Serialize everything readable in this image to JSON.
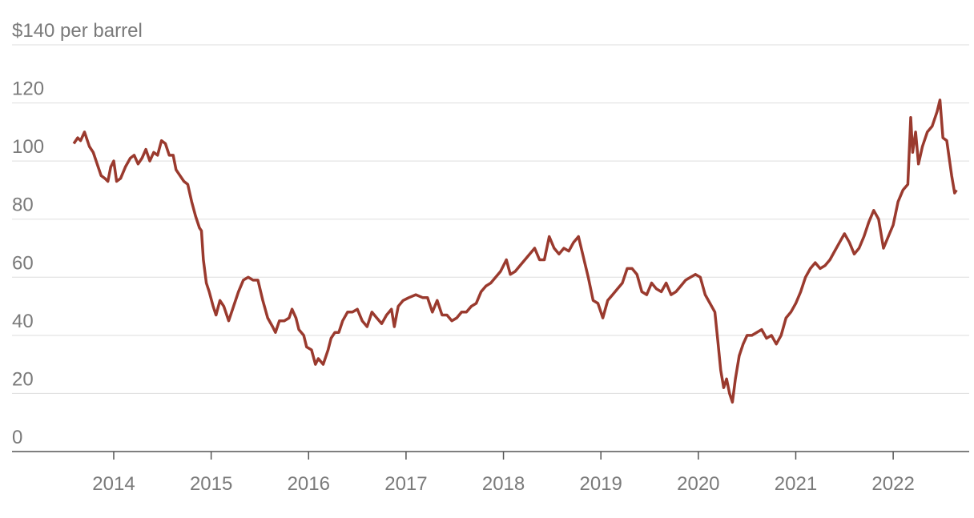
{
  "chart_data": {
    "type": "line",
    "x": [
      2013.59,
      2013.63,
      2013.66,
      2013.7,
      2013.75,
      2013.79,
      2013.83,
      2013.87,
      2013.91,
      2013.94,
      2013.97,
      2014.0,
      2014.03,
      2014.07,
      2014.12,
      2014.17,
      2014.21,
      2014.25,
      2014.29,
      2014.33,
      2014.37,
      2014.41,
      2014.45,
      2014.49,
      2014.53,
      2014.57,
      2014.61,
      2014.64,
      2014.68,
      2014.72,
      2014.76,
      2014.8,
      2014.84,
      2014.88,
      2014.9,
      2014.92,
      2014.95,
      2014.98,
      2015.02,
      2015.05,
      2015.09,
      2015.13,
      2015.18,
      2015.22,
      2015.28,
      2015.33,
      2015.38,
      2015.43,
      2015.48,
      2015.53,
      2015.58,
      2015.63,
      2015.66,
      2015.7,
      2015.75,
      2015.8,
      2015.83,
      2015.87,
      2015.9,
      2015.95,
      2015.98,
      2016.03,
      2016.07,
      2016.1,
      2016.15,
      2016.2,
      2016.23,
      2016.27,
      2016.31,
      2016.35,
      2016.4,
      2016.45,
      2016.5,
      2016.55,
      2016.6,
      2016.65,
      2016.7,
      2016.75,
      2016.8,
      2016.85,
      2016.88,
      2016.92,
      2016.97,
      2017.03,
      2017.1,
      2017.17,
      2017.22,
      2017.27,
      2017.32,
      2017.37,
      2017.42,
      2017.47,
      2017.52,
      2017.57,
      2017.62,
      2017.67,
      2017.72,
      2017.77,
      2017.82,
      2017.87,
      2017.92,
      2017.97,
      2018.03,
      2018.07,
      2018.12,
      2018.17,
      2018.22,
      2018.27,
      2018.32,
      2018.37,
      2018.42,
      2018.47,
      2018.52,
      2018.57,
      2018.62,
      2018.67,
      2018.72,
      2018.77,
      2018.82,
      2018.87,
      2018.92,
      2018.97,
      2019.02,
      2019.07,
      2019.12,
      2019.17,
      2019.22,
      2019.27,
      2019.32,
      2019.37,
      2019.42,
      2019.47,
      2019.52,
      2019.57,
      2019.62,
      2019.67,
      2019.72,
      2019.77,
      2019.82,
      2019.87,
      2019.92,
      2019.97,
      2020.02,
      2020.07,
      2020.12,
      2020.17,
      2020.2,
      2020.23,
      2020.26,
      2020.29,
      2020.32,
      2020.35,
      2020.38,
      2020.42,
      2020.46,
      2020.5,
      2020.55,
      2020.6,
      2020.65,
      2020.7,
      2020.75,
      2020.8,
      2020.85,
      2020.9,
      2020.95,
      2021.0,
      2021.05,
      2021.1,
      2021.15,
      2021.2,
      2021.25,
      2021.3,
      2021.35,
      2021.4,
      2021.45,
      2021.5,
      2021.55,
      2021.6,
      2021.65,
      2021.7,
      2021.75,
      2021.8,
      2021.85,
      2021.9,
      2021.95,
      2022.0,
      2022.05,
      2022.1,
      2022.15,
      2022.18,
      2022.2,
      2022.23,
      2022.26,
      2022.3,
      2022.35,
      2022.4,
      2022.45,
      2022.48,
      2022.51,
      2022.55,
      2022.6,
      2022.63,
      2022.65
    ],
    "series": [
      {
        "color": "#9a3a2e",
        "values": [
          106,
          108,
          107,
          110,
          105,
          103,
          99,
          95,
          94,
          93,
          98,
          100,
          93,
          94,
          98,
          101,
          102,
          99,
          101,
          104,
          100,
          103,
          102,
          107,
          106,
          102,
          102,
          97,
          95,
          93,
          92,
          86,
          81,
          77,
          76,
          66,
          58,
          55,
          50,
          47,
          52,
          50,
          45,
          49,
          55,
          59,
          60,
          59,
          59,
          52,
          46,
          43,
          41,
          45,
          45,
          46,
          49,
          46,
          42,
          40,
          36,
          35,
          30,
          32,
          30,
          35,
          39,
          41,
          41,
          45,
          48,
          48,
          49,
          45,
          43,
          48,
          46,
          44,
          47,
          49,
          43,
          50,
          52,
          53,
          54,
          53,
          53,
          48,
          52,
          47,
          47,
          45,
          46,
          48,
          48,
          50,
          51,
          55,
          57,
          58,
          60,
          62,
          66,
          61,
          62,
          64,
          66,
          68,
          70,
          66,
          66,
          74,
          70,
          68,
          70,
          69,
          72,
          74,
          67,
          60,
          52,
          51,
          46,
          52,
          54,
          56,
          58,
          63,
          63,
          61,
          55,
          54,
          58,
          56,
          55,
          58,
          54,
          55,
          57,
          59,
          60,
          61,
          60,
          54,
          51,
          48,
          38,
          28,
          22,
          25,
          20,
          17,
          25,
          33,
          37,
          40,
          40,
          41,
          42,
          39,
          40,
          37,
          40,
          46,
          48,
          51,
          55,
          60,
          63,
          65,
          63,
          64,
          66,
          69,
          72,
          75,
          72,
          68,
          70,
          74,
          79,
          83,
          80,
          70,
          74,
          78,
          86,
          90,
          92,
          115,
          103,
          110,
          99,
          105,
          110,
          112,
          117,
          121,
          108,
          107,
          95,
          89,
          90
        ]
      }
    ],
    "xlim": [
      2012.956,
      2022.78
    ],
    "xticks": [
      2014,
      2015,
      2016,
      2017,
      2018,
      2019,
      2020,
      2021,
      2022
    ],
    "ylim": [
      0,
      140
    ],
    "yticks": [
      0,
      20,
      40,
      60,
      80,
      100,
      120,
      {
        "value": 140,
        "label": "$140 per barrel"
      }
    ],
    "grid": true
  }
}
